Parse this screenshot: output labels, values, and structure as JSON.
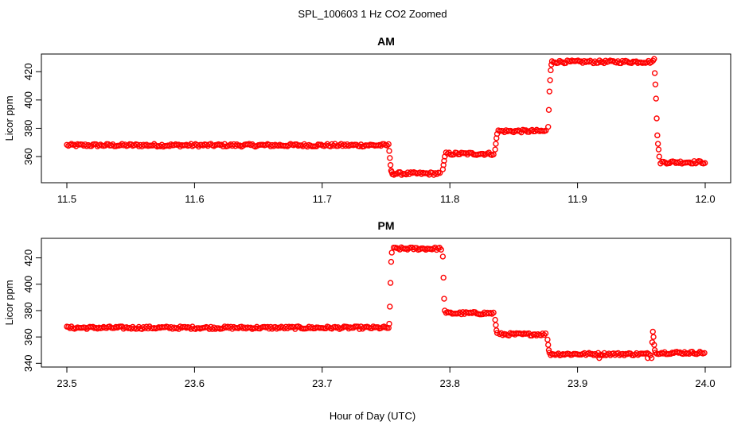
{
  "figure": {
    "title": "SPL_100603  1 Hz CO2 Zoomed",
    "xlabel": "Hour of Day (UTC)"
  },
  "colors": {
    "points": "#ff0000",
    "axes": "#000000"
  },
  "chart_data": [
    {
      "type": "scatter",
      "title": "AM",
      "ylabel": "Licor ppm",
      "xlabel": "",
      "xlim": [
        11.5,
        12.0
      ],
      "ylim": [
        346,
        428
      ],
      "xticks": [
        "11.5",
        "11.6",
        "11.7",
        "11.8",
        "11.9",
        "12.0"
      ],
      "yticks": [
        "360",
        "380",
        "400",
        "420"
      ],
      "grid": false,
      "marker": "open-circle",
      "segments": [
        {
          "x_start": 11.5,
          "x_end": 11.752,
          "y": 368
        },
        {
          "x_start": 11.755,
          "x_end": 11.793,
          "y": 348
        },
        {
          "x_start": 11.797,
          "x_end": 11.835,
          "y": 362
        },
        {
          "x_start": 11.838,
          "x_end": 11.876,
          "y": 378
        },
        {
          "x_start": 11.88,
          "x_end": 11.96,
          "y": 427
        },
        {
          "x_start": 11.965,
          "x_end": 12.0,
          "y": 356
        }
      ],
      "transitions": [
        {
          "x": [
            11.7525,
            11.753,
            11.7535,
            11.754,
            11.7545
          ],
          "y": [
            364,
            359,
            354,
            350,
            349
          ]
        },
        {
          "x": [
            11.7945,
            11.795,
            11.7955,
            11.796
          ],
          "y": [
            351,
            354,
            357,
            360
          ]
        },
        {
          "x": [
            11.8355,
            11.836,
            11.8365,
            11.837
          ],
          "y": [
            365,
            369,
            373,
            376
          ]
        },
        {
          "x": [
            11.877,
            11.8775,
            11.878,
            11.8785,
            11.879,
            11.8795
          ],
          "y": [
            381,
            393,
            406,
            414,
            421,
            425
          ]
        },
        {
          "x": [
            11.96,
            11.9605,
            11.961,
            11.9615,
            11.962,
            11.9625,
            11.963,
            11.9635,
            11.964
          ],
          "y": [
            429,
            419,
            411,
            401,
            387,
            375,
            369,
            365,
            360
          ]
        }
      ]
    },
    {
      "type": "scatter",
      "title": "PM",
      "ylabel": "Licor ppm",
      "xlabel": "Hour of Day (UTC)",
      "xlim": [
        23.5,
        24.0
      ],
      "ylim": [
        342,
        430
      ],
      "xticks": [
        "23.5",
        "23.6",
        "23.7",
        "23.8",
        "23.9",
        "24.0"
      ],
      "yticks": [
        "340",
        "360",
        "380",
        "400",
        "420"
      ],
      "grid": false,
      "marker": "open-circle",
      "segments": [
        {
          "x_start": 23.5,
          "x_end": 23.752,
          "y": 367
        },
        {
          "x_start": 23.756,
          "x_end": 23.794,
          "y": 427
        },
        {
          "x_start": 23.797,
          "x_end": 23.835,
          "y": 378
        },
        {
          "x_start": 23.839,
          "x_end": 23.876,
          "y": 362
        },
        {
          "x_start": 23.879,
          "x_end": 23.958,
          "y": 347
        },
        {
          "x_start": 23.961,
          "x_end": 24.0,
          "y": 348
        }
      ],
      "transitions": [
        {
          "x": [
            23.7525,
            23.753,
            23.7535,
            23.754,
            23.7545
          ],
          "y": [
            370,
            383,
            401,
            417,
            424
          ]
        },
        {
          "x": [
            23.7945,
            23.795,
            23.7955,
            23.796
          ],
          "y": [
            421,
            405,
            389,
            380
          ]
        },
        {
          "x": [
            23.8355,
            23.836,
            23.8365,
            23.837
          ],
          "y": [
            373,
            369,
            365,
            363
          ]
        },
        {
          "x": [
            23.8765,
            23.877,
            23.8775,
            23.878
          ],
          "y": [
            358,
            354,
            350,
            348
          ]
        },
        {
          "x": [
            23.958,
            23.9585,
            23.959,
            23.9595,
            23.96,
            23.9605
          ],
          "y": [
            344,
            356,
            364,
            360,
            354,
            350
          ]
        },
        {
          "x": [
            23.917,
            23.955
          ],
          "y": [
            344,
            344
          ]
        }
      ]
    }
  ]
}
